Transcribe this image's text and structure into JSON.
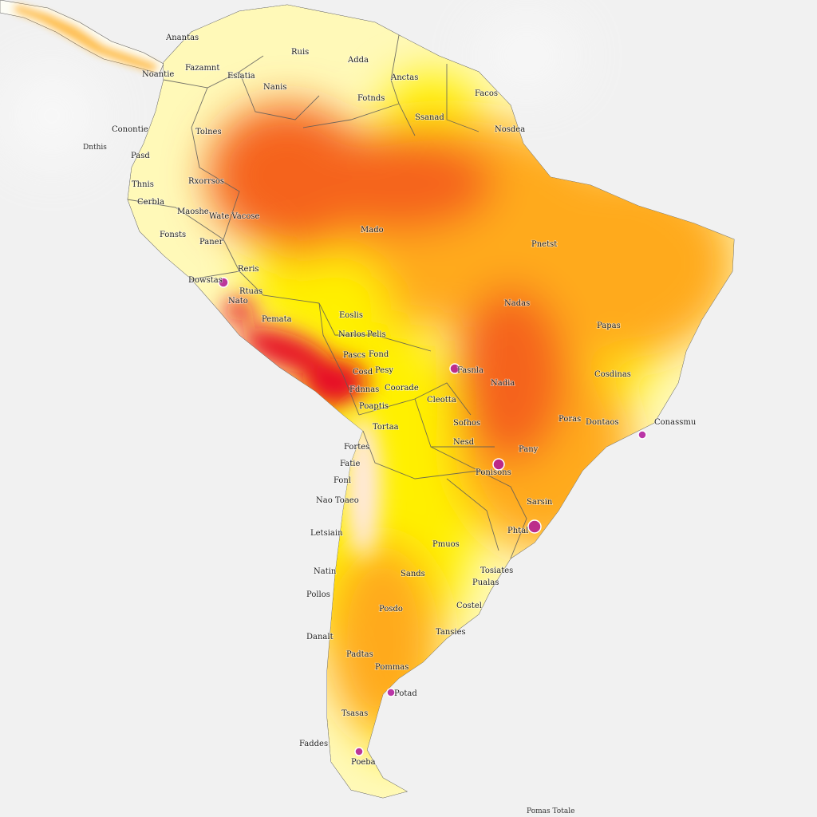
{
  "map": {
    "colors": {
      "ocean": "#f1f1f1",
      "land": "#fdfdf6",
      "pale_yellow": "#fff9b8",
      "yellow": "#fff000",
      "orange": "#ffaa1a",
      "deep_orange": "#f5631c",
      "red": "#e60f26",
      "hotspot": "#b0159a",
      "border": "#5a5a5a"
    },
    "corner_labels": {
      "west_edge": "Dnthis",
      "bottom_right": "Pomas Totale"
    },
    "labels": [
      "Anantas",
      "Noantie",
      "Eslatia",
      "Fazamnt",
      "Ruis",
      "Nanis",
      "Adda",
      "Fotnds",
      "Anctas",
      "Ssanad",
      "Facos",
      "Nosdea",
      "Conontie",
      "Pasd",
      "Tolnes",
      "Thnis",
      "Cerbla",
      "Rxorrsos",
      "Maoshe",
      "Wate Vacose",
      "Fonsts",
      "Paner",
      "Dowstas",
      "Reris",
      "Rtuas",
      "Mado",
      "Pnetst",
      "Nadas",
      "Papas",
      "Cosdinas",
      "Conassmu",
      "Nato",
      "Pemata",
      "Eoslis",
      "Narlos",
      "Pelis",
      "Pascs",
      "Fond",
      "Cosd",
      "Pesy",
      "Fdnnas",
      "Coorade",
      "Fasnla",
      "Poaptis",
      "Cleotta",
      "Tortaa",
      "Sofhos",
      "Nadia",
      "Poras",
      "Dontaos",
      "Pany",
      "Fonl",
      "Nao Toaeo",
      "Letsiain",
      "Nesd",
      "Fortes",
      "Fatie",
      "Ponisons",
      "Sarsin",
      "Phtal",
      "Pmuos",
      "Sands",
      "Tosiates",
      "Pualas",
      "Natin",
      "Pollos",
      "Posdo",
      "Costel",
      "Tansies",
      "Danalt",
      "Padtas",
      "Pommas",
      "Potad",
      "Tsasas",
      "Faddes",
      "Poeba"
    ]
  }
}
